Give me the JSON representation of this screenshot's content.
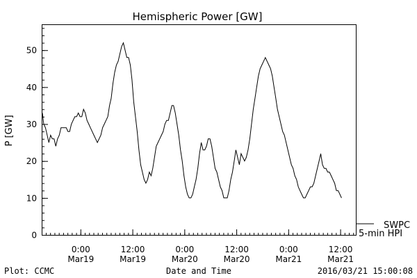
{
  "chart_data": {
    "type": "line",
    "title": "Hemispheric Power [GW]",
    "ylabel": "P [GW]",
    "xlabel": "Date and Time",
    "ylim": [
      0,
      57
    ],
    "xlim": [
      -8.8,
      63.6
    ],
    "y_ticks": [
      0,
      10,
      20,
      30,
      40,
      50
    ],
    "y_minor_step": 2,
    "x_ticks": [
      {
        "h": 0,
        "time": "0:00",
        "date": "Mar19"
      },
      {
        "h": 12,
        "time": "12:00",
        "date": "Mar19"
      },
      {
        "h": 24,
        "time": "0:00",
        "date": "Mar20"
      },
      {
        "h": 36,
        "time": "12:00",
        "date": "Mar20"
      },
      {
        "h": 48,
        "time": "0:00",
        "date": "Mar21"
      },
      {
        "h": 60,
        "time": "12:00",
        "date": "Mar21"
      }
    ],
    "x_minor_step": 1,
    "grid": false,
    "legend": {
      "source": "SWPC",
      "series": "5-min HPI",
      "position": "right-bottom"
    },
    "series": [
      {
        "name": "5-min HPI",
        "color": "#000000",
        "points": [
          [
            -8.8,
            33
          ],
          [
            -8.5,
            30
          ],
          [
            -8.1,
            29
          ],
          [
            -7.7,
            27
          ],
          [
            -7.3,
            25
          ],
          [
            -6.9,
            27
          ],
          [
            -6.5,
            26
          ],
          [
            -6.1,
            26
          ],
          [
            -5.7,
            24
          ],
          [
            -5.3,
            26
          ],
          [
            -4.9,
            27
          ],
          [
            -4.5,
            29
          ],
          [
            -3.7,
            29
          ],
          [
            -3.3,
            29
          ],
          [
            -2.9,
            28
          ],
          [
            -2.5,
            28
          ],
          [
            -2.1,
            30
          ],
          [
            -1.7,
            31
          ],
          [
            -1.3,
            32
          ],
          [
            -0.9,
            32
          ],
          [
            -0.5,
            33
          ],
          [
            -0.1,
            32
          ],
          [
            0.3,
            32
          ],
          [
            0.7,
            34
          ],
          [
            1.1,
            33
          ],
          [
            1.5,
            31
          ],
          [
            1.9,
            30
          ],
          [
            2.3,
            29
          ],
          [
            2.7,
            28
          ],
          [
            3.1,
            27
          ],
          [
            3.5,
            26
          ],
          [
            3.9,
            25
          ],
          [
            4.3,
            26
          ],
          [
            4.7,
            27
          ],
          [
            5.1,
            29
          ],
          [
            5.5,
            30
          ],
          [
            5.9,
            31
          ],
          [
            6.3,
            32
          ],
          [
            6.7,
            35
          ],
          [
            7.1,
            37
          ],
          [
            7.5,
            41
          ],
          [
            7.9,
            44
          ],
          [
            8.3,
            46
          ],
          [
            8.7,
            47
          ],
          [
            9.1,
            49
          ],
          [
            9.5,
            51
          ],
          [
            9.9,
            52
          ],
          [
            10.3,
            50
          ],
          [
            10.7,
            48
          ],
          [
            11.1,
            48
          ],
          [
            11.5,
            46
          ],
          [
            11.9,
            42
          ],
          [
            12.3,
            36
          ],
          [
            12.7,
            32
          ],
          [
            13.1,
            28
          ],
          [
            13.5,
            23
          ],
          [
            13.9,
            19
          ],
          [
            14.3,
            17
          ],
          [
            14.7,
            15
          ],
          [
            15.1,
            14
          ],
          [
            15.5,
            15
          ],
          [
            15.9,
            17
          ],
          [
            16.3,
            16
          ],
          [
            16.7,
            18
          ],
          [
            17.1,
            21
          ],
          [
            17.5,
            24
          ],
          [
            17.9,
            25
          ],
          [
            18.3,
            26
          ],
          [
            18.7,
            27
          ],
          [
            19.1,
            28
          ],
          [
            19.5,
            30
          ],
          [
            19.9,
            31
          ],
          [
            20.3,
            31
          ],
          [
            20.7,
            33
          ],
          [
            21.1,
            35
          ],
          [
            21.5,
            35
          ],
          [
            21.9,
            33
          ],
          [
            22.3,
            30
          ],
          [
            22.7,
            27
          ],
          [
            23.1,
            23
          ],
          [
            23.5,
            20
          ],
          [
            23.9,
            16
          ],
          [
            24.3,
            13
          ],
          [
            24.7,
            11
          ],
          [
            25.1,
            10
          ],
          [
            25.5,
            10
          ],
          [
            25.9,
            11
          ],
          [
            26.3,
            13
          ],
          [
            26.7,
            15
          ],
          [
            27.1,
            18
          ],
          [
            27.5,
            22
          ],
          [
            27.9,
            25
          ],
          [
            28.3,
            23
          ],
          [
            28.7,
            23
          ],
          [
            29.1,
            24
          ],
          [
            29.5,
            26
          ],
          [
            29.9,
            26
          ],
          [
            30.3,
            24
          ],
          [
            30.7,
            21
          ],
          [
            31.1,
            18
          ],
          [
            31.5,
            17
          ],
          [
            31.9,
            15
          ],
          [
            32.3,
            13
          ],
          [
            32.7,
            12
          ],
          [
            33.1,
            10
          ],
          [
            33.5,
            10
          ],
          [
            33.9,
            10
          ],
          [
            34.3,
            12
          ],
          [
            34.7,
            15
          ],
          [
            35.1,
            17
          ],
          [
            35.5,
            20
          ],
          [
            35.9,
            23
          ],
          [
            36.3,
            21
          ],
          [
            36.7,
            19
          ],
          [
            37.1,
            22
          ],
          [
            37.5,
            21
          ],
          [
            37.9,
            20
          ],
          [
            38.3,
            21
          ],
          [
            38.7,
            23
          ],
          [
            39.1,
            26
          ],
          [
            39.5,
            30
          ],
          [
            39.9,
            34
          ],
          [
            40.3,
            37
          ],
          [
            40.7,
            40
          ],
          [
            41.1,
            43
          ],
          [
            41.5,
            45
          ],
          [
            41.9,
            46
          ],
          [
            42.3,
            47
          ],
          [
            42.7,
            48
          ],
          [
            43.1,
            47
          ],
          [
            43.5,
            46
          ],
          [
            43.9,
            45
          ],
          [
            44.3,
            43
          ],
          [
            44.7,
            40
          ],
          [
            45.1,
            37
          ],
          [
            45.5,
            34
          ],
          [
            45.9,
            32
          ],
          [
            46.3,
            30
          ],
          [
            46.7,
            28
          ],
          [
            47.1,
            27
          ],
          [
            47.5,
            25
          ],
          [
            47.9,
            23
          ],
          [
            48.3,
            21
          ],
          [
            48.7,
            19
          ],
          [
            49.1,
            18
          ],
          [
            49.5,
            16
          ],
          [
            49.9,
            15
          ],
          [
            50.3,
            13
          ],
          [
            50.7,
            12
          ],
          [
            51.1,
            11
          ],
          [
            51.5,
            10
          ],
          [
            51.9,
            10
          ],
          [
            52.3,
            11
          ],
          [
            52.7,
            12
          ],
          [
            53.1,
            13
          ],
          [
            53.5,
            13
          ],
          [
            53.9,
            14
          ],
          [
            54.3,
            16
          ],
          [
            54.7,
            18
          ],
          [
            55.1,
            20
          ],
          [
            55.5,
            22
          ],
          [
            55.9,
            19
          ],
          [
            56.3,
            18
          ],
          [
            56.7,
            18
          ],
          [
            57.1,
            17
          ],
          [
            57.5,
            17
          ],
          [
            57.9,
            16
          ],
          [
            58.3,
            15
          ],
          [
            58.7,
            14
          ],
          [
            59.1,
            12
          ],
          [
            59.5,
            12
          ],
          [
            59.9,
            11
          ],
          [
            60.3,
            10
          ]
        ]
      }
    ]
  },
  "footer": {
    "left": "Plot: CCMC",
    "center": "Date and Time",
    "right": "2016/03/21 15:00:08"
  }
}
